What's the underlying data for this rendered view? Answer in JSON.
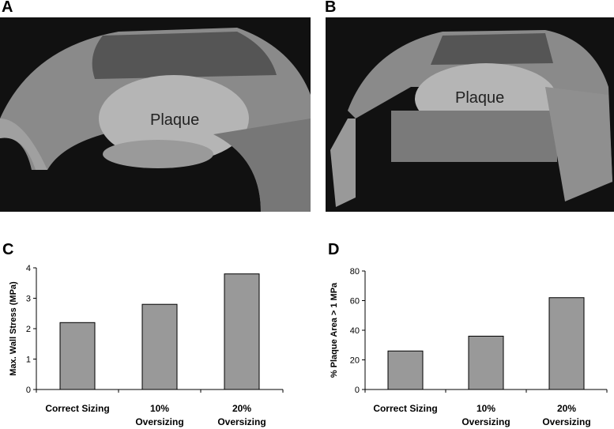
{
  "panels": {
    "a": "A",
    "b": "B",
    "c": "C",
    "d": "D"
  },
  "images": {
    "a_label": "Plaque",
    "b_label": "Plaque"
  },
  "chart_data": [
    {
      "type": "bar",
      "y_label": "Max. Wall Stress (MPa)",
      "categories": [
        "Correct Sizing",
        "10%\nOversizing",
        "20%\nOversizing"
      ],
      "values": [
        2.2,
        2.8,
        3.8
      ],
      "color": "#999999",
      "ylim": [
        0,
        4
      ],
      "yticks": [
        0,
        1,
        2,
        3,
        4
      ]
    },
    {
      "type": "bar",
      "y_label": "% Plaque Area > 1 MPa",
      "categories": [
        "Correct Sizing",
        "10%\nOversizing",
        "20%\nOversizing"
      ],
      "values": [
        26,
        36,
        62
      ],
      "color": "#999999",
      "ylim": [
        0,
        80
      ],
      "yticks": [
        0,
        20,
        40,
        60,
        80
      ]
    }
  ]
}
